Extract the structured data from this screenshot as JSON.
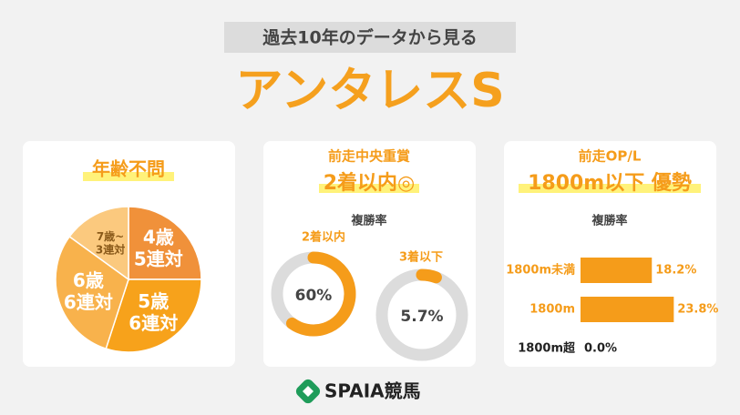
{
  "header": {
    "subtitle": "過去10年のデータから見る",
    "title": "アンタレスS"
  },
  "chart_data": [
    {
      "type": "pie",
      "title": "年齢不問",
      "categories": [
        "4歳",
        "5歳",
        "6歳",
        "7歳~"
      ],
      "values": [
        5,
        6,
        6,
        3
      ],
      "value_labels": [
        "5連対",
        "6連対",
        "6連対",
        "3連対"
      ],
      "colors": [
        "#f0913a",
        "#f7a21b",
        "#f8b24c",
        "#fbc97e"
      ]
    },
    {
      "type": "donut",
      "title": "前走中央重賞",
      "headline": "2着以内◎",
      "subtitle": "複勝率",
      "categories": [
        "2着以内",
        "3着以下"
      ],
      "values": [
        60,
        5.7
      ],
      "value_labels": [
        "60%",
        "5.7%"
      ],
      "color": "#f59c1a",
      "track_color": "#dcdcdc"
    },
    {
      "type": "bar",
      "title": "前走OP/L",
      "headline": "1800m以下 優勢",
      "subtitle": "複勝率",
      "categories": [
        "1800m未満",
        "1800m",
        "1800m超"
      ],
      "values": [
        18.2,
        23.8,
        0.0
      ],
      "value_labels": [
        "18.2%",
        "23.8%",
        "0.0%"
      ],
      "color": "#f59c1a"
    }
  ],
  "footer": {
    "brand": "SPAIA競馬"
  }
}
